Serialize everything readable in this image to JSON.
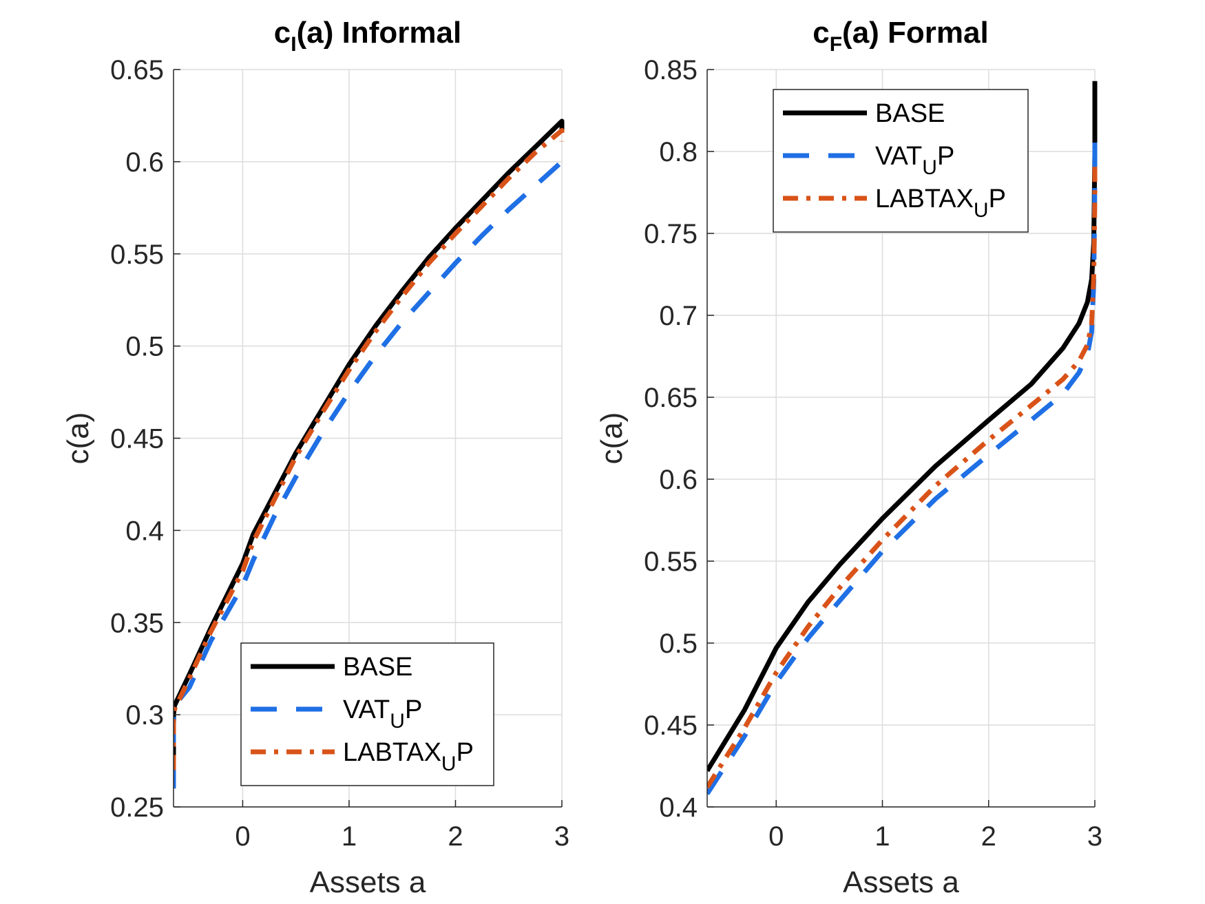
{
  "chart_data": [
    {
      "type": "line",
      "title": "c(a) Informal",
      "title_main": "c",
      "title_sub": "I",
      "title_rest": "(a) Informal",
      "xlabel": "Assets a",
      "ylabel": "c(a)",
      "xlim": [
        -0.65,
        3
      ],
      "ylim": [
        0.25,
        0.65
      ],
      "xticks": [
        0,
        1,
        2,
        3
      ],
      "xtick_labels": [
        "0",
        "1",
        "2",
        "3"
      ],
      "yticks": [
        0.25,
        0.3,
        0.35,
        0.4,
        0.45,
        0.5,
        0.55,
        0.6,
        0.65
      ],
      "ytick_labels": [
        "0.25",
        "0.3",
        "0.35",
        "0.4",
        "0.45",
        "0.5",
        "0.55",
        "0.6",
        "0.65"
      ],
      "grid": true,
      "legend_position": "bottom-right",
      "series": [
        {
          "name": "BASE",
          "legend_main": "BASE",
          "legend_sub": "",
          "legend_rest": "",
          "color": "#000000",
          "dash": "solid",
          "x": [
            -0.65,
            -0.65,
            -0.64,
            -0.5,
            -0.3,
            0,
            0.1,
            0.3,
            0.5,
            0.75,
            1,
            1.25,
            1.5,
            1.75,
            2,
            2.25,
            2.5,
            2.75,
            3,
            3
          ],
          "y": [
            0.27,
            0.3,
            0.305,
            0.322,
            0.347,
            0.382,
            0.398,
            0.42,
            0.442,
            0.466,
            0.49,
            0.511,
            0.53,
            0.548,
            0.564,
            0.579,
            0.594,
            0.608,
            0.622,
            0.617
          ]
        },
        {
          "name": "VATUP",
          "legend_main": "VAT",
          "legend_sub": "U",
          "legend_rest": "P",
          "color": "#1f6fe5",
          "dash": "dashed",
          "x": [
            -0.65,
            -0.65,
            -0.64,
            -0.5,
            -0.3,
            0,
            0.1,
            0.3,
            0.5,
            0.75,
            1,
            1.25,
            1.5,
            1.75,
            2,
            2.25,
            2.5,
            2.75,
            3,
            3
          ],
          "y": [
            0.26,
            0.295,
            0.305,
            0.315,
            0.34,
            0.37,
            0.384,
            0.408,
            0.429,
            0.453,
            0.475,
            0.495,
            0.513,
            0.529,
            0.545,
            0.56,
            0.574,
            0.587,
            0.6,
            0.594
          ]
        },
        {
          "name": "LABTAXUP",
          "legend_main": "LABTAX",
          "legend_sub": "U",
          "legend_rest": "P",
          "color": "#d95319",
          "dash": "dashdot",
          "x": [
            -0.65,
            -0.65,
            -0.64,
            -0.5,
            -0.3,
            0,
            0.1,
            0.3,
            0.5,
            0.75,
            1,
            1.25,
            1.5,
            1.75,
            2,
            2.25,
            2.5,
            2.75,
            3,
            3
          ],
          "y": [
            0.27,
            0.298,
            0.303,
            0.32,
            0.345,
            0.378,
            0.394,
            0.417,
            0.44,
            0.464,
            0.487,
            0.508,
            0.527,
            0.545,
            0.561,
            0.576,
            0.591,
            0.605,
            0.617,
            0.611
          ]
        }
      ]
    },
    {
      "type": "line",
      "title": "c(a) Formal",
      "title_main": "c",
      "title_sub": "F",
      "title_rest": "(a) Formal",
      "xlabel": "Assets a",
      "ylabel": "c(a)",
      "xlim": [
        -0.65,
        3
      ],
      "ylim": [
        0.4,
        0.85
      ],
      "xticks": [
        0,
        1,
        2,
        3
      ],
      "xtick_labels": [
        "0",
        "1",
        "2",
        "3"
      ],
      "yticks": [
        0.4,
        0.45,
        0.5,
        0.55,
        0.6,
        0.65,
        0.7,
        0.75,
        0.8,
        0.85
      ],
      "ytick_labels": [
        "0.4",
        "0.45",
        "0.5",
        "0.55",
        "0.6",
        "0.65",
        "0.7",
        "0.75",
        "0.8",
        "0.85"
      ],
      "grid": true,
      "legend_position": "top-left",
      "series": [
        {
          "name": "BASE",
          "legend_main": "BASE",
          "legend_sub": "",
          "legend_rest": "",
          "color": "#000000",
          "dash": "solid",
          "x": [
            -0.65,
            -0.3,
            0,
            0.3,
            0.6,
            1,
            1.5,
            2,
            2.4,
            2.7,
            2.85,
            2.93,
            2.97,
            2.99,
            3,
            3
          ],
          "y": [
            0.422,
            0.459,
            0.497,
            0.525,
            0.548,
            0.576,
            0.608,
            0.636,
            0.658,
            0.68,
            0.695,
            0.708,
            0.722,
            0.745,
            0.8,
            0.843
          ]
        },
        {
          "name": "VATUP",
          "legend_main": "VAT",
          "legend_sub": "U",
          "legend_rest": "P",
          "color": "#1f6fe5",
          "dash": "dashed",
          "x": [
            -0.65,
            -0.3,
            0,
            0.3,
            0.6,
            1,
            1.5,
            2,
            2.4,
            2.7,
            2.85,
            2.93,
            2.97,
            2.99,
            3,
            3
          ],
          "y": [
            0.408,
            0.443,
            0.476,
            0.503,
            0.526,
            0.556,
            0.588,
            0.615,
            0.636,
            0.652,
            0.665,
            0.676,
            0.69,
            0.72,
            0.78,
            0.815
          ]
        },
        {
          "name": "LABTAXUP",
          "legend_main": "LABTAX",
          "legend_sub": "U",
          "legend_rest": "P",
          "color": "#d95319",
          "dash": "dashdot",
          "x": [
            -0.65,
            -0.3,
            0,
            0.3,
            0.6,
            1,
            1.5,
            2,
            2.4,
            2.7,
            2.85,
            2.93,
            2.97,
            2.99,
            3,
            3
          ],
          "y": [
            0.412,
            0.448,
            0.482,
            0.51,
            0.534,
            0.563,
            0.596,
            0.624,
            0.645,
            0.661,
            0.672,
            0.682,
            0.695,
            0.725,
            0.77,
            0.795
          ]
        }
      ]
    }
  ]
}
